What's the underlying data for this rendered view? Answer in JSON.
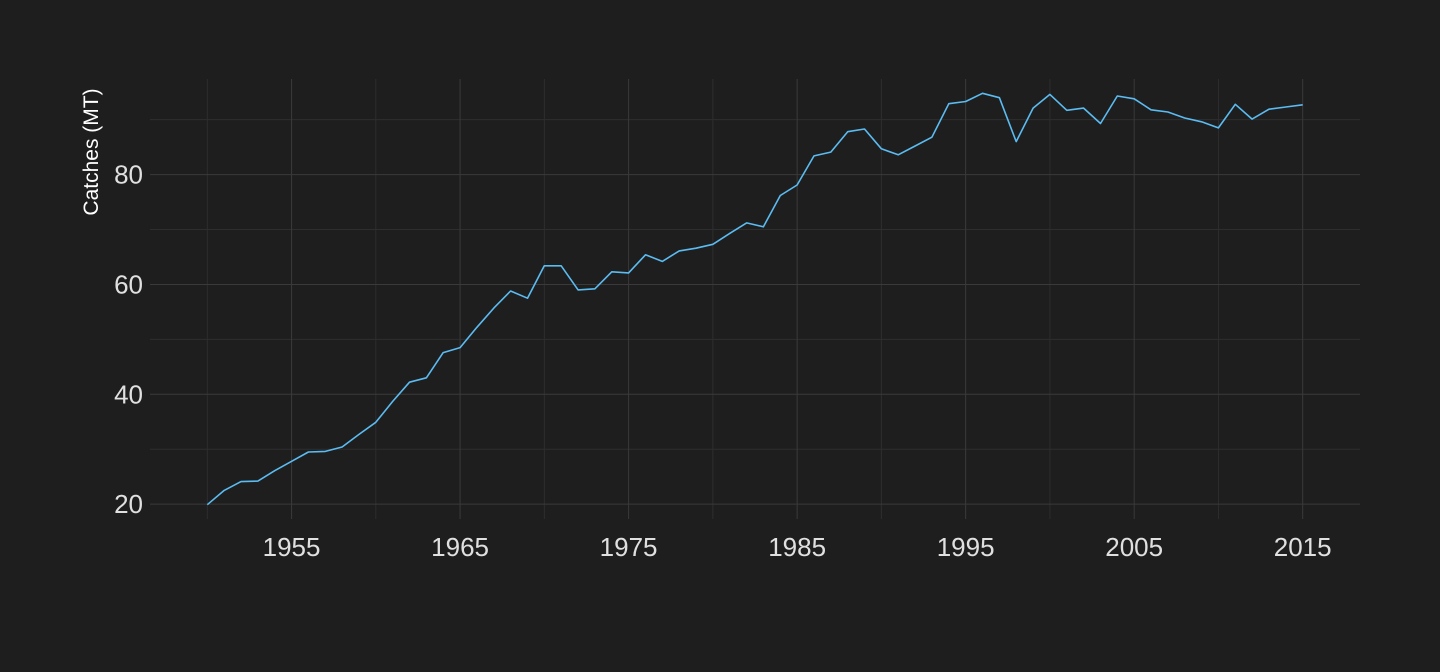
{
  "chart_data": {
    "type": "line",
    "title": "",
    "xlabel": "",
    "ylabel": "Catches (MT)",
    "xlim": [
      1946.6,
      2018.4
    ],
    "ylim": [
      17.3,
      97.4
    ],
    "x_ticks": [
      1955,
      1965,
      1975,
      1985,
      1995,
      2005,
      2015
    ],
    "y_ticks": [
      20,
      40,
      60,
      80
    ],
    "grid": true,
    "line_color": "#5bbcf2",
    "background_color": "#1e1e1e",
    "series": [
      {
        "x": [
          1950,
          1951,
          1952,
          1953,
          1954,
          1955,
          1956,
          1957,
          1958,
          1959,
          1960,
          1961,
          1962,
          1963,
          1964,
          1965,
          1966,
          1967,
          1968,
          1969,
          1970,
          1971,
          1972,
          1973,
          1974,
          1975,
          1976,
          1977,
          1978,
          1979,
          1980,
          1981,
          1982,
          1983,
          1984,
          1985,
          1986,
          1987,
          1988,
          1989,
          1990,
          1991,
          1992,
          1993,
          1994,
          1995,
          1996,
          1997,
          1998,
          1999,
          2000,
          2001,
          2002,
          2003,
          2004,
          2005,
          2006,
          2007,
          2008,
          2009,
          2010,
          2011,
          2012,
          2013,
          2014,
          2015
        ],
        "y": [
          19.9,
          22.5,
          24.1,
          24.2,
          26.1,
          27.8,
          29.5,
          29.6,
          30.4,
          32.7,
          34.9,
          38.7,
          42.2,
          43.0,
          47.6,
          48.5,
          52.2,
          55.7,
          58.8,
          57.5,
          63.4,
          63.4,
          59.0,
          59.2,
          62.3,
          62.1,
          65.4,
          64.2,
          66.1,
          66.6,
          67.3,
          69.3,
          71.2,
          70.5,
          76.2,
          78.1,
          83.4,
          84.1,
          87.8,
          88.3,
          84.7,
          83.6,
          85.2,
          86.8,
          92.9,
          93.3,
          94.8,
          94.0,
          86.0,
          92.1,
          94.6,
          91.7,
          92.1,
          89.3,
          94.3,
          93.8,
          91.8,
          91.4,
          90.3,
          89.6,
          88.5,
          92.8,
          90.1,
          91.9,
          92.3,
          92.7
        ]
      }
    ]
  }
}
